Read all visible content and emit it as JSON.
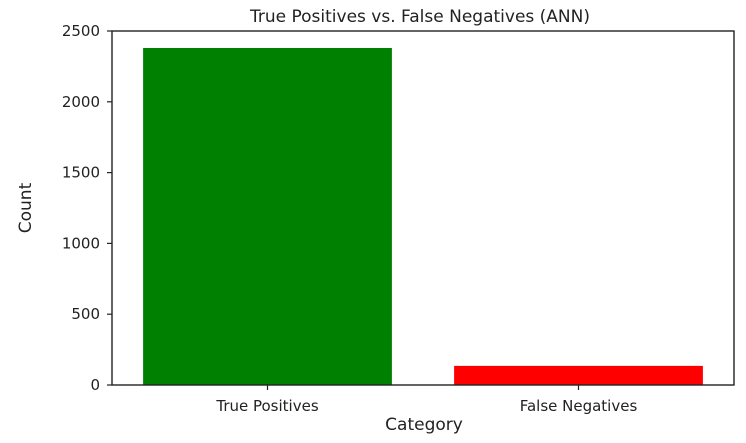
{
  "chart_data": {
    "type": "bar",
    "title": "True Positives vs. False Negatives (ANN)",
    "xlabel": "Category",
    "ylabel": "Count",
    "categories": [
      "True Positives",
      "False Negatives"
    ],
    "values": [
      2380,
      135
    ],
    "colors": [
      "#008000",
      "#ff0000"
    ],
    "ylim": [
      0,
      2500
    ],
    "yticks": [
      0,
      500,
      1000,
      1500,
      2000,
      2500
    ],
    "grid": false,
    "legend": "none"
  }
}
